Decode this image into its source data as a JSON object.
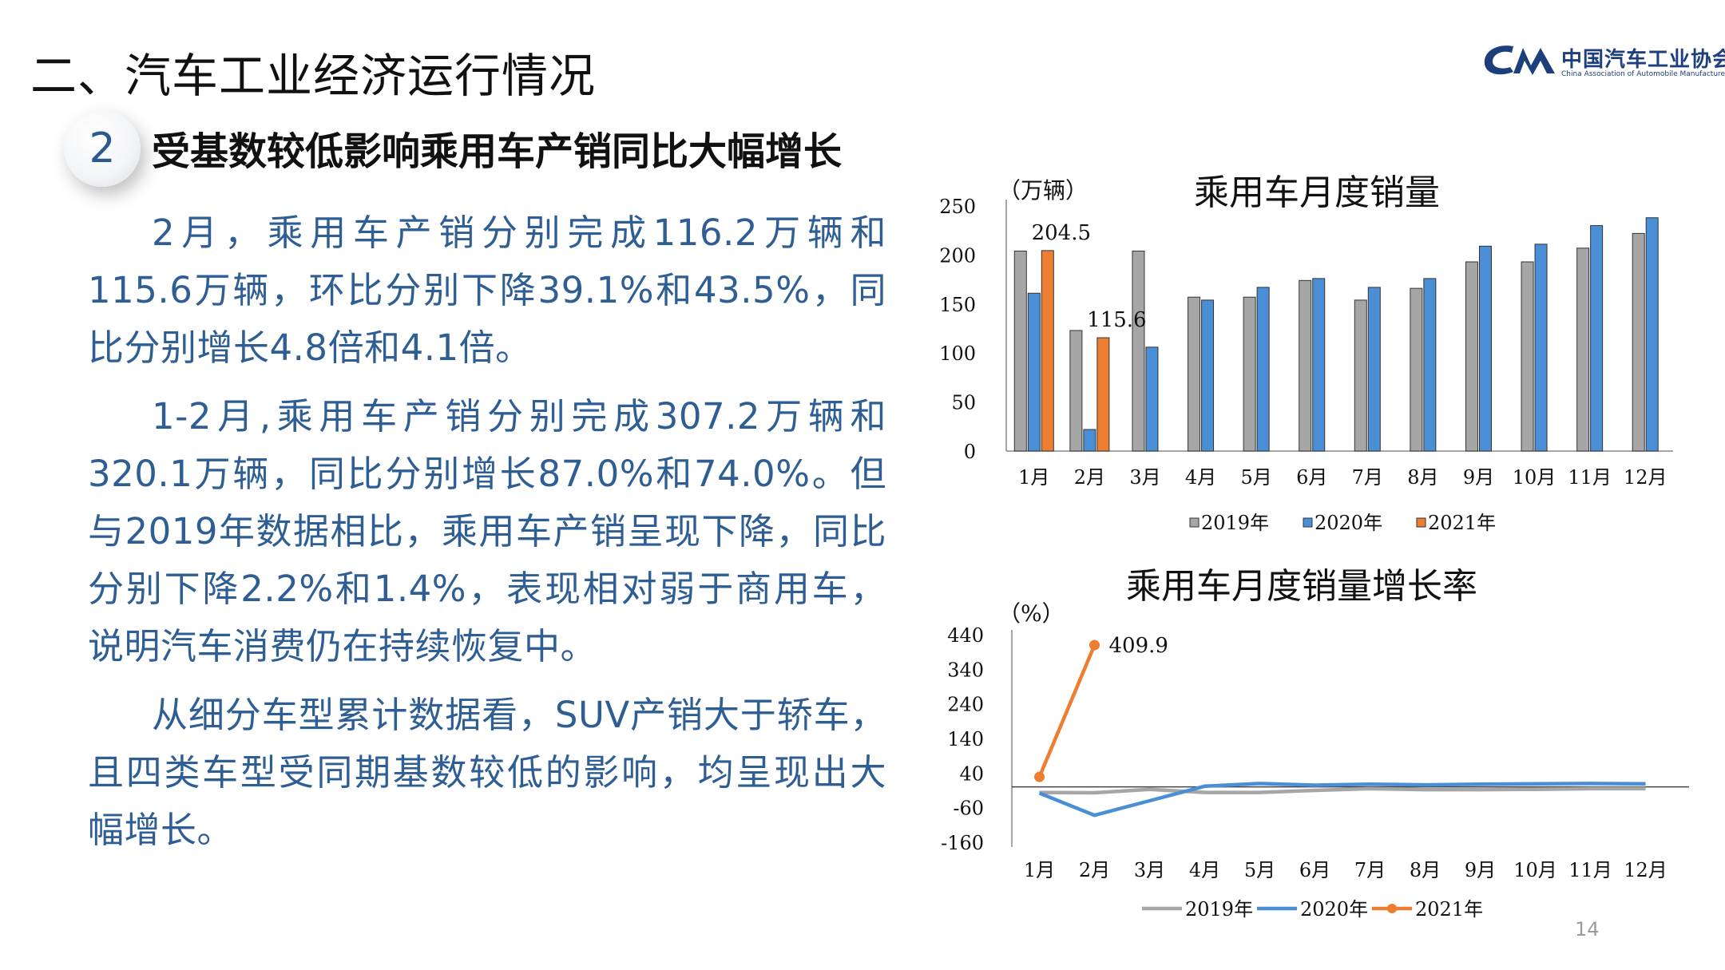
{
  "header": {
    "title": "二、汽车工业经济运行情况",
    "logo_text_cn": "中国汽车工业协会",
    "logo_text_en": "China Association of Automobile Manufacturers"
  },
  "section": {
    "number": "2",
    "heading": "受基数较低影响乘用车产销同比大幅增长"
  },
  "paragraphs": [
    "2月，乘用车产销分别完成116.2万辆和115.6万辆，环比分别下降39.1%和43.5%，同比分别增长4.8倍和4.1倍。",
    "1-2月,乘用车产销分别完成307.2万辆和320.1万辆，同比分别增长87.0%和74.0%。但与2019年数据相比，乘用车产销呈现下降，同比分别下降2.2%和1.4%，表现相对弱于商用车，说明汽车消费仍在持续恢复中。",
    "从细分车型累计数据看，SUV产销大于轿车，且四类车型受同期基数较低的影响，均呈现出大幅增长。"
  ],
  "page_number": "14",
  "colors": {
    "series_2019": "#a6a6a6",
    "series_2020": "#4a8fd6",
    "series_2021": "#ed7d31",
    "text_blue": "#2e5e93"
  },
  "chart_data": [
    {
      "type": "bar",
      "title": "乘用车月度销量",
      "ylabel": "（万辆）",
      "ylim": [
        0,
        250
      ],
      "yticks": [
        0,
        50,
        100,
        150,
        200,
        250
      ],
      "categories": [
        "1月",
        "2月",
        "3月",
        "4月",
        "5月",
        "6月",
        "7月",
        "8月",
        "9月",
        "10月",
        "11月",
        "12月"
      ],
      "series": [
        {
          "name": "2019年",
          "values": [
            204,
            123,
            204,
            157,
            157,
            174,
            154,
            166,
            193,
            193,
            207,
            222
          ]
        },
        {
          "name": "2020年",
          "values": [
            161,
            22,
            106,
            154,
            167,
            176,
            167,
            176,
            209,
            211,
            230,
            238
          ]
        },
        {
          "name": "2021年",
          "values": [
            204.5,
            115.6,
            null,
            null,
            null,
            null,
            null,
            null,
            null,
            null,
            null,
            null
          ]
        }
      ],
      "data_labels": [
        {
          "series": "2021年",
          "index": 0,
          "text": "204.5"
        },
        {
          "series": "2021年",
          "index": 1,
          "text": "115.6"
        }
      ],
      "legend": "bottom"
    },
    {
      "type": "line",
      "title": "乘用车月度销量增长率",
      "ylabel": "（%）",
      "ylim": [
        -160,
        440
      ],
      "yticks": [
        440,
        340,
        240,
        140,
        40,
        -60,
        -160
      ],
      "categories": [
        "1月",
        "2月",
        "3月",
        "4月",
        "5月",
        "6月",
        "7月",
        "8月",
        "9月",
        "10月",
        "11月",
        "12月"
      ],
      "series": [
        {
          "name": "2019年",
          "values": [
            -16,
            -17,
            -7,
            -16,
            -16,
            -10,
            -5,
            -8,
            -8,
            -7,
            -5,
            -5
          ]
        },
        {
          "name": "2020年",
          "values": [
            -18,
            -82,
            -40,
            2,
            10,
            5,
            8,
            6,
            8,
            9,
            10,
            9
          ]
        },
        {
          "name": "2021年",
          "values": [
            29,
            409.9,
            null,
            null,
            null,
            null,
            null,
            null,
            null,
            null,
            null,
            null
          ]
        }
      ],
      "data_labels": [
        {
          "series": "2021年",
          "index": 1,
          "text": "409.9"
        }
      ],
      "legend": "bottom"
    }
  ]
}
